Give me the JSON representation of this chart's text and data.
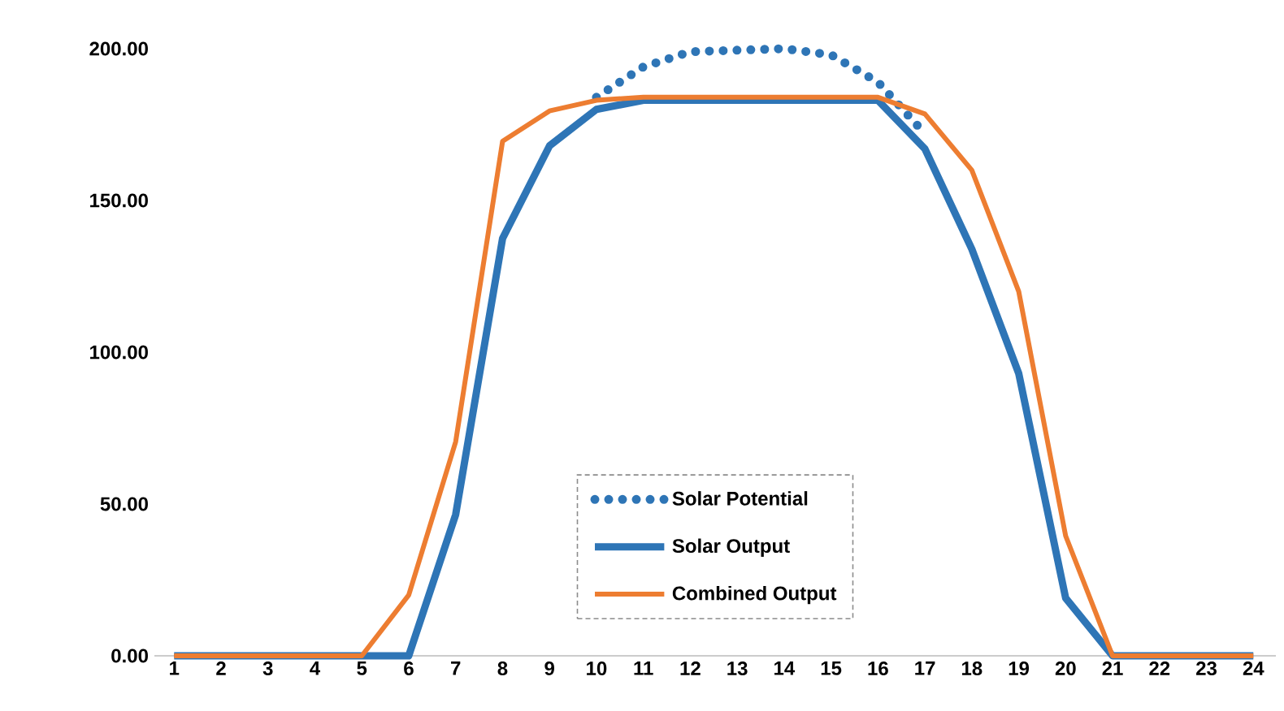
{
  "chart_data": {
    "type": "line",
    "categories": [
      "1",
      "2",
      "3",
      "4",
      "5",
      "6",
      "7",
      "8",
      "9",
      "10",
      "11",
      "12",
      "13",
      "14",
      "15",
      "16",
      "17",
      "18",
      "19",
      "20",
      "21",
      "22",
      "23",
      "24"
    ],
    "series": [
      {
        "name": "Solar Potential",
        "color": "#2e75b6",
        "line_style": "dotted",
        "values": [
          null,
          null,
          null,
          null,
          null,
          null,
          null,
          null,
          null,
          184,
          194,
          199,
          199.5,
          200,
          198,
          189,
          172,
          null,
          null,
          null,
          null,
          null,
          null,
          null
        ]
      },
      {
        "name": "Solar Output",
        "color": "#2e75b6",
        "line_style": "solid",
        "values": [
          0,
          0,
          0,
          0,
          0,
          0,
          46.5,
          137.5,
          168,
          180,
          183,
          183,
          183,
          183,
          183,
          183,
          167,
          134,
          93,
          19,
          0,
          0,
          0,
          0
        ]
      },
      {
        "name": "Combined Output",
        "color": "#ed7d31",
        "line_style": "solid",
        "values": [
          0,
          0,
          0,
          0,
          0,
          20,
          70.5,
          169.5,
          179.5,
          183,
          184,
          184,
          184,
          184,
          184,
          184,
          178.5,
          160,
          120,
          39.5,
          0,
          0,
          0,
          0
        ]
      }
    ],
    "ylim": [
      0,
      200
    ],
    "yticks": [
      {
        "value": 0,
        "label": "0.00"
      },
      {
        "value": 50,
        "label": "50.00"
      },
      {
        "value": 100,
        "label": "100.00"
      },
      {
        "value": 150,
        "label": "150.00"
      },
      {
        "value": 200,
        "label": "200.00"
      }
    ],
    "grid": false,
    "legend": "bottom",
    "marker": "none"
  }
}
